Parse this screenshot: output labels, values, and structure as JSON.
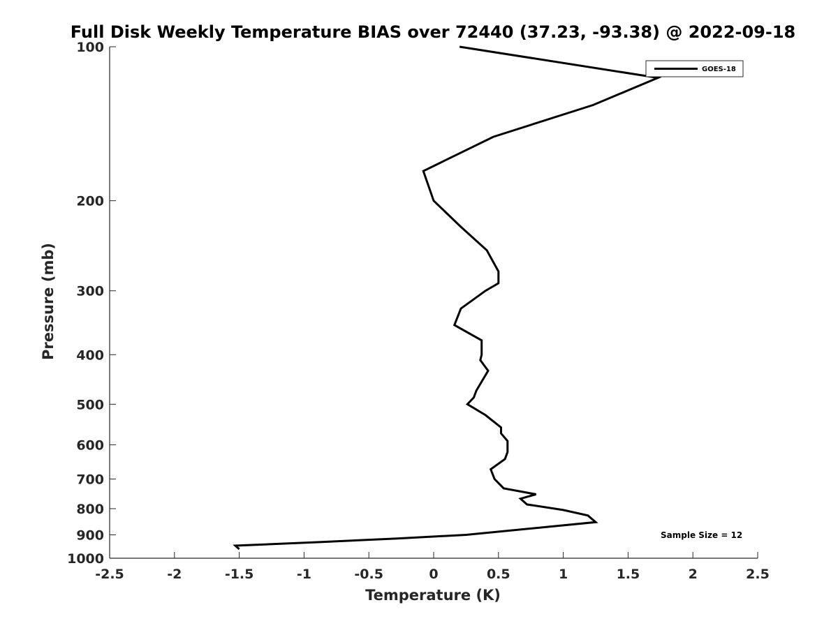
{
  "chart_data": {
    "type": "line",
    "title": "Full Disk Weekly Temperature BIAS over 72440 (37.23, -93.38) @ 2022-09-18",
    "xlabel": "Temperature (K)",
    "ylabel": "Pressure (mb)",
    "xlim": [
      -2.5,
      2.5
    ],
    "ylim": [
      100,
      1000
    ],
    "y_scale": "log",
    "y_reversed": true,
    "x_ticks": [
      -2.5,
      -2,
      -1.5,
      -1,
      -0.5,
      0,
      0.5,
      1,
      1.5,
      2,
      2.5
    ],
    "x_tick_labels": [
      "-2.5",
      "-2",
      "-1.5",
      "-1",
      "-0.5",
      "0",
      "0.5",
      "1",
      "1.5",
      "2",
      "2.5"
    ],
    "y_ticks": [
      100,
      200,
      300,
      400,
      500,
      600,
      700,
      800,
      900,
      1000
    ],
    "y_tick_labels": [
      "100",
      "200",
      "300",
      "400",
      "500",
      "600",
      "700",
      "800",
      "900",
      "1000"
    ],
    "grid": false,
    "legend_position": "top-right",
    "series": [
      {
        "name": "GOES-18",
        "color": "#000000",
        "points": [
          {
            "t": 0.2,
            "p": 100
          },
          {
            "t": 1.73,
            "p": 115
          },
          {
            "t": 1.23,
            "p": 130
          },
          {
            "t": 0.46,
            "p": 150
          },
          {
            "t": -0.08,
            "p": 175
          },
          {
            "t": 0.0,
            "p": 200
          },
          {
            "t": 0.21,
            "p": 225
          },
          {
            "t": 0.41,
            "p": 250
          },
          {
            "t": 0.5,
            "p": 275
          },
          {
            "t": 0.5,
            "p": 290
          },
          {
            "t": 0.4,
            "p": 300
          },
          {
            "t": 0.21,
            "p": 325
          },
          {
            "t": 0.16,
            "p": 350
          },
          {
            "t": 0.37,
            "p": 375
          },
          {
            "t": 0.37,
            "p": 400
          },
          {
            "t": 0.36,
            "p": 410
          },
          {
            "t": 0.42,
            "p": 430
          },
          {
            "t": 0.33,
            "p": 470
          },
          {
            "t": 0.31,
            "p": 485
          },
          {
            "t": 0.26,
            "p": 500
          },
          {
            "t": 0.4,
            "p": 525
          },
          {
            "t": 0.52,
            "p": 555
          },
          {
            "t": 0.52,
            "p": 570
          },
          {
            "t": 0.57,
            "p": 590
          },
          {
            "t": 0.57,
            "p": 620
          },
          {
            "t": 0.55,
            "p": 640
          },
          {
            "t": 0.44,
            "p": 670
          },
          {
            "t": 0.47,
            "p": 700
          },
          {
            "t": 0.54,
            "p": 730
          },
          {
            "t": 0.79,
            "p": 750
          },
          {
            "t": 0.67,
            "p": 765
          },
          {
            "t": 0.72,
            "p": 785
          },
          {
            "t": 1.0,
            "p": 805
          },
          {
            "t": 1.19,
            "p": 825
          },
          {
            "t": 1.25,
            "p": 850
          },
          {
            "t": 0.25,
            "p": 900
          },
          {
            "t": -0.28,
            "p": 915
          },
          {
            "t": -0.88,
            "p": 930
          },
          {
            "t": -1.53,
            "p": 945
          },
          {
            "t": -1.5,
            "p": 960
          }
        ]
      }
    ],
    "legend": {
      "entries": [
        "GOES-18"
      ]
    },
    "annotation": "Sample Size = 12"
  }
}
